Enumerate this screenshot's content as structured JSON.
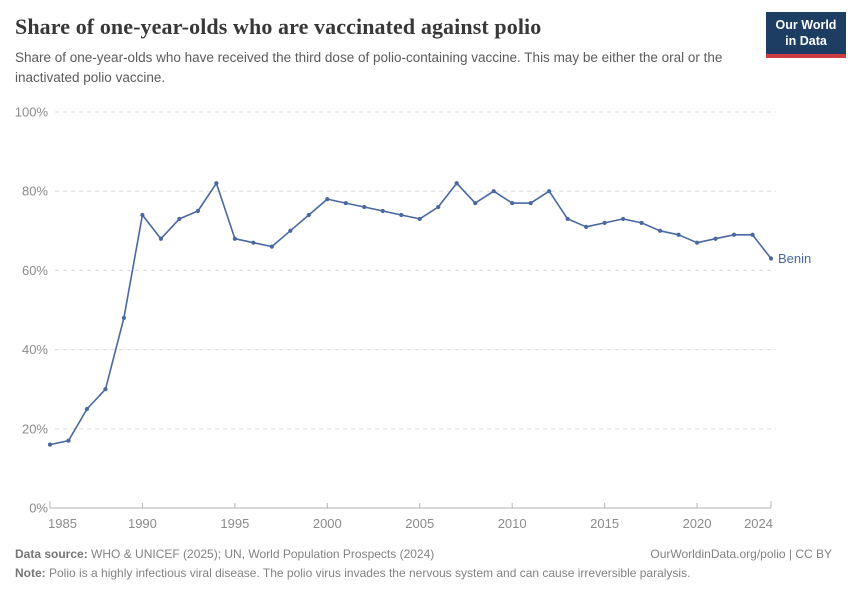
{
  "header": {
    "title": "Share of one-year-olds who are vaccinated against polio",
    "subtitle": "Share of one-year-olds who have received the third dose of polio-containing vaccine. This may be either the oral or the inactivated polio vaccine.",
    "logo": {
      "line1": "Our World",
      "line2": "in Data",
      "bg_color": "#1d3d63",
      "accent_color": "#cf3b43",
      "text_color": "#ffffff"
    }
  },
  "chart_data": {
    "type": "line",
    "title": "Share of one-year-olds who are vaccinated against polio",
    "xlabel": "",
    "ylabel": "",
    "x": [
      1985,
      1986,
      1987,
      1988,
      1989,
      1990,
      1991,
      1992,
      1993,
      1994,
      1995,
      1996,
      1997,
      1998,
      1999,
      2000,
      2001,
      2002,
      2003,
      2004,
      2005,
      2006,
      2007,
      2008,
      2009,
      2010,
      2011,
      2012,
      2013,
      2014,
      2015,
      2016,
      2017,
      2018,
      2019,
      2020,
      2021,
      2022,
      2023,
      2024
    ],
    "series": [
      {
        "name": "Benin",
        "color": "#4868a0",
        "values": [
          16,
          17,
          25,
          30,
          48,
          74,
          68,
          73,
          75,
          82,
          68,
          67,
          66,
          70,
          74,
          78,
          77,
          76,
          75,
          74,
          73,
          76,
          82,
          77,
          80,
          77,
          77,
          80,
          73,
          71,
          72,
          73,
          72,
          70,
          69,
          67,
          68,
          69,
          69,
          63
        ]
      }
    ],
    "end_label": "Benin",
    "x_ticks": [
      1985,
      1990,
      1995,
      2000,
      2005,
      2010,
      2015,
      2020,
      2024
    ],
    "y_ticks": [
      0,
      20,
      40,
      60,
      80,
      100
    ],
    "y_suffix": "%",
    "xlim": [
      1985,
      2024
    ],
    "ylim": [
      0,
      100
    ],
    "grid": "horizontal-dashed",
    "legend": "line-end-label",
    "colors": {
      "grid": "#dcdcdc",
      "axis": "#b3b3b3",
      "tick_label": "#8b8b8b"
    }
  },
  "footer": {
    "datasource_label": "Data source:",
    "datasource_text": " WHO & UNICEF (2025); UN, World Population Prospects (2024)",
    "credit": "OurWorldinData.org/polio | CC BY",
    "note_label": "Note:",
    "note_text": " Polio is a highly infectious viral disease. The polio virus invades the nervous system and can cause irreversible paralysis."
  }
}
